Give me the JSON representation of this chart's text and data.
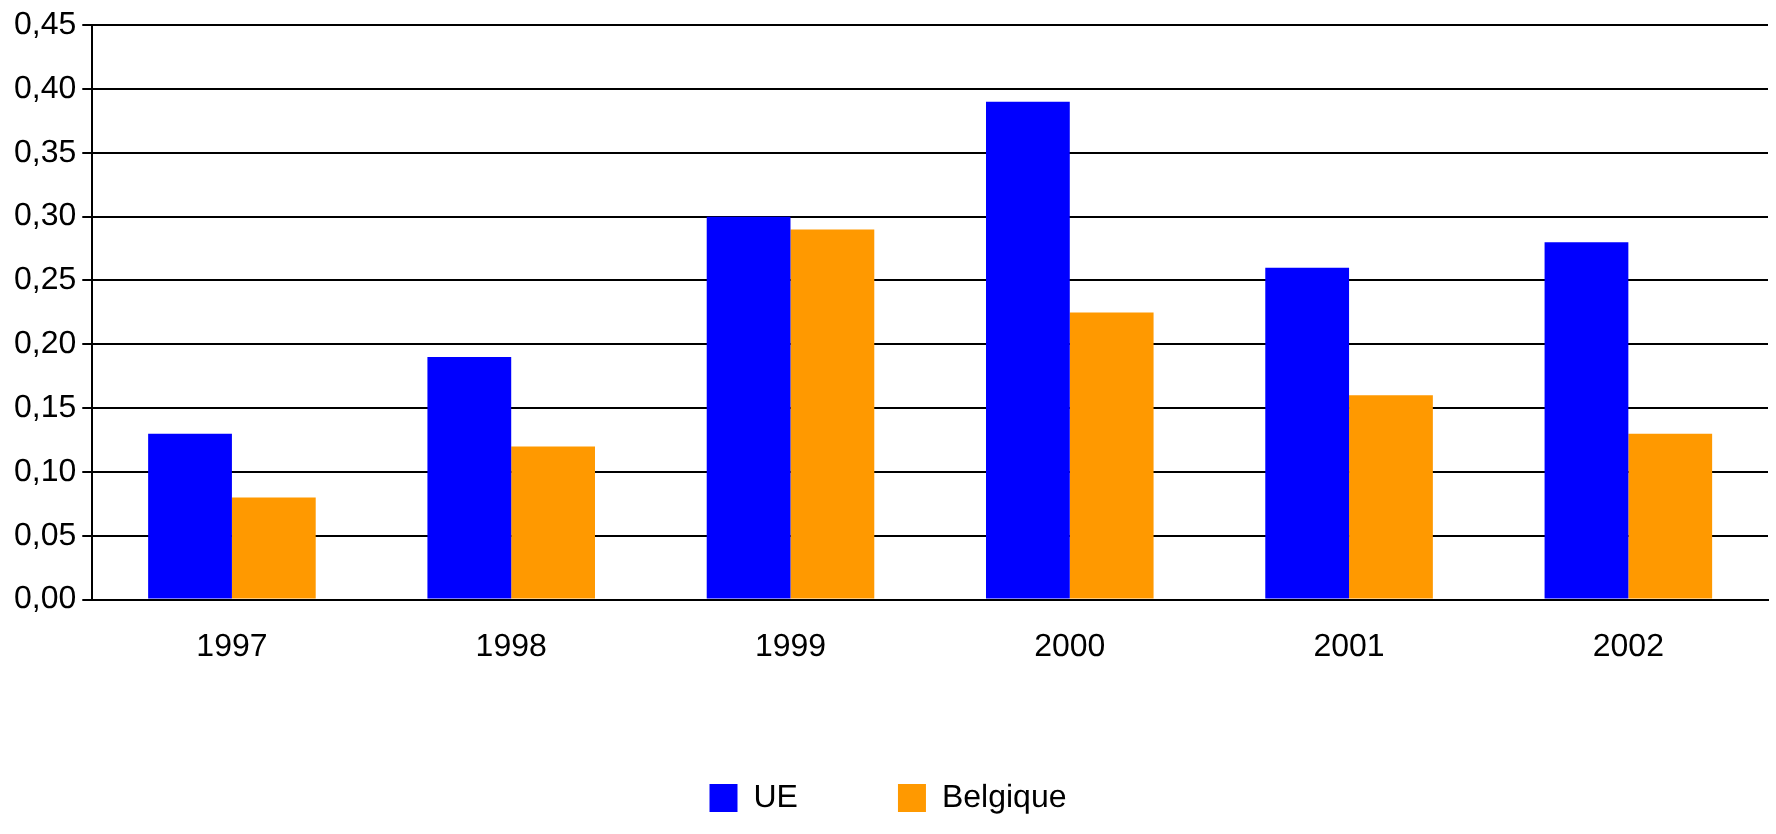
{
  "chart_data": {
    "type": "bar",
    "categories": [
      "1997",
      "1998",
      "1999",
      "2000",
      "2001",
      "2002"
    ],
    "series": [
      {
        "name": "UE",
        "color": "#0000ff",
        "values": [
          0.13,
          0.19,
          0.3,
          0.39,
          0.26,
          0.28
        ]
      },
      {
        "name": "Belgique",
        "color": "#ff9900",
        "values": [
          0.08,
          0.12,
          0.29,
          0.225,
          0.16,
          0.13
        ]
      }
    ],
    "ylim": [
      0,
      0.45
    ],
    "yticks": [
      {
        "value": 0,
        "label": "0,00"
      },
      {
        "value": 0.05,
        "label": "0,05"
      },
      {
        "value": 0.1,
        "label": "0,10"
      },
      {
        "value": 0.15,
        "label": "0,15"
      },
      {
        "value": 0.2,
        "label": "0,20"
      },
      {
        "value": 0.25,
        "label": "0,25"
      },
      {
        "value": 0.3,
        "label": "0,30"
      },
      {
        "value": 0.35,
        "label": "0,35"
      },
      {
        "value": 0.4,
        "label": "0,40"
      },
      {
        "value": 0.45,
        "label": "0,45"
      }
    ],
    "grid": "y",
    "legend": "bottom"
  }
}
